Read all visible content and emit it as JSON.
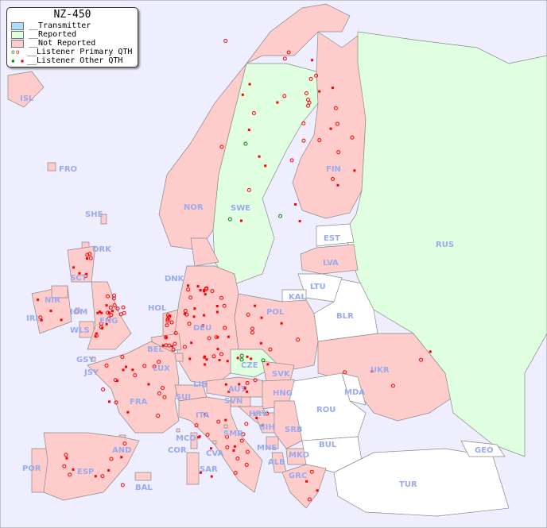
{
  "legend": {
    "title": "NZ-450",
    "items": [
      {
        "label": "__Transmitter",
        "color": "#aaddff",
        "kind": "swatch"
      },
      {
        "label": "__Reported",
        "color": "#e0ffe0",
        "kind": "swatch"
      },
      {
        "label": "__Not Reported",
        "color": "#ffcccc",
        "kind": "swatch"
      },
      {
        "label": "__Listener Primary QTH",
        "kind": "circle"
      },
      {
        "label": "__Listener Other QTH",
        "kind": "square"
      }
    ]
  },
  "colors": {
    "sea": "#eeeeff",
    "not_reported": "#ffcccc",
    "reported": "#e0ffe0",
    "no_data": "#ffffff",
    "marker": "#ff0000",
    "marker_reported": "#008800",
    "label": "#99aaee"
  },
  "countries": [
    {
      "code": "ISL",
      "status": "not_reported"
    },
    {
      "code": "FRO",
      "status": "not_reported"
    },
    {
      "code": "SHE",
      "status": "not_reported"
    },
    {
      "code": "ORK",
      "status": "not_reported"
    },
    {
      "code": "NOR",
      "status": "not_reported"
    },
    {
      "code": "SWE",
      "status": "reported"
    },
    {
      "code": "FIN",
      "status": "not_reported"
    },
    {
      "code": "EST",
      "status": "no_data"
    },
    {
      "code": "RUS",
      "status": "reported"
    },
    {
      "code": "LVA",
      "status": "not_reported"
    },
    {
      "code": "LTU",
      "status": "no_data"
    },
    {
      "code": "KAL",
      "status": "no_data"
    },
    {
      "code": "BLR",
      "status": "no_data"
    },
    {
      "code": "DNK",
      "status": "not_reported"
    },
    {
      "code": "HOL",
      "status": "not_reported"
    },
    {
      "code": "DEU",
      "status": "not_reported"
    },
    {
      "code": "POL",
      "status": "not_reported"
    },
    {
      "code": "IRL",
      "status": "not_reported"
    },
    {
      "code": "NIR",
      "status": "not_reported"
    },
    {
      "code": "SCT",
      "status": "not_reported"
    },
    {
      "code": "IOM",
      "status": "not_reported"
    },
    {
      "code": "WLS",
      "status": "not_reported"
    },
    {
      "code": "ENG",
      "status": "not_reported"
    },
    {
      "code": "BEL",
      "status": "not_reported"
    },
    {
      "code": "LUX",
      "status": "not_reported"
    },
    {
      "code": "GSY",
      "status": "not_reported"
    },
    {
      "code": "JSY",
      "status": "not_reported"
    },
    {
      "code": "FRA",
      "status": "not_reported"
    },
    {
      "code": "SUI",
      "status": "not_reported"
    },
    {
      "code": "LIE",
      "status": "not_reported"
    },
    {
      "code": "AUT",
      "status": "not_reported"
    },
    {
      "code": "CZE",
      "status": "reported"
    },
    {
      "code": "SVK",
      "status": "not_reported"
    },
    {
      "code": "HNG",
      "status": "not_reported"
    },
    {
      "code": "UKR",
      "status": "not_reported"
    },
    {
      "code": "MDA",
      "status": "no_data"
    },
    {
      "code": "ROU",
      "status": "no_data"
    },
    {
      "code": "SVN",
      "status": "not_reported"
    },
    {
      "code": "HRV",
      "status": "not_reported"
    },
    {
      "code": "BIH",
      "status": "not_reported"
    },
    {
      "code": "SRB",
      "status": "not_reported"
    },
    {
      "code": "ITA",
      "status": "not_reported"
    },
    {
      "code": "MCO",
      "status": "not_reported"
    },
    {
      "code": "COR",
      "status": "not_reported"
    },
    {
      "code": "SMR",
      "status": "not_reported"
    },
    {
      "code": "CVA",
      "status": "not_reported"
    },
    {
      "code": "MNE",
      "status": "not_reported"
    },
    {
      "code": "ALB",
      "status": "not_reported"
    },
    {
      "code": "MKD",
      "status": "not_reported"
    },
    {
      "code": "BUL",
      "status": "no_data"
    },
    {
      "code": "GRC",
      "status": "not_reported"
    },
    {
      "code": "TUR",
      "status": "no_data"
    },
    {
      "code": "GEO",
      "status": "no_data"
    },
    {
      "code": "AND",
      "status": "not_reported"
    },
    {
      "code": "POR",
      "status": "not_reported"
    },
    {
      "code": "ESP",
      "status": "not_reported"
    },
    {
      "code": "BAL",
      "status": "not_reported"
    },
    {
      "code": "SAR",
      "status": "not_reported"
    }
  ]
}
